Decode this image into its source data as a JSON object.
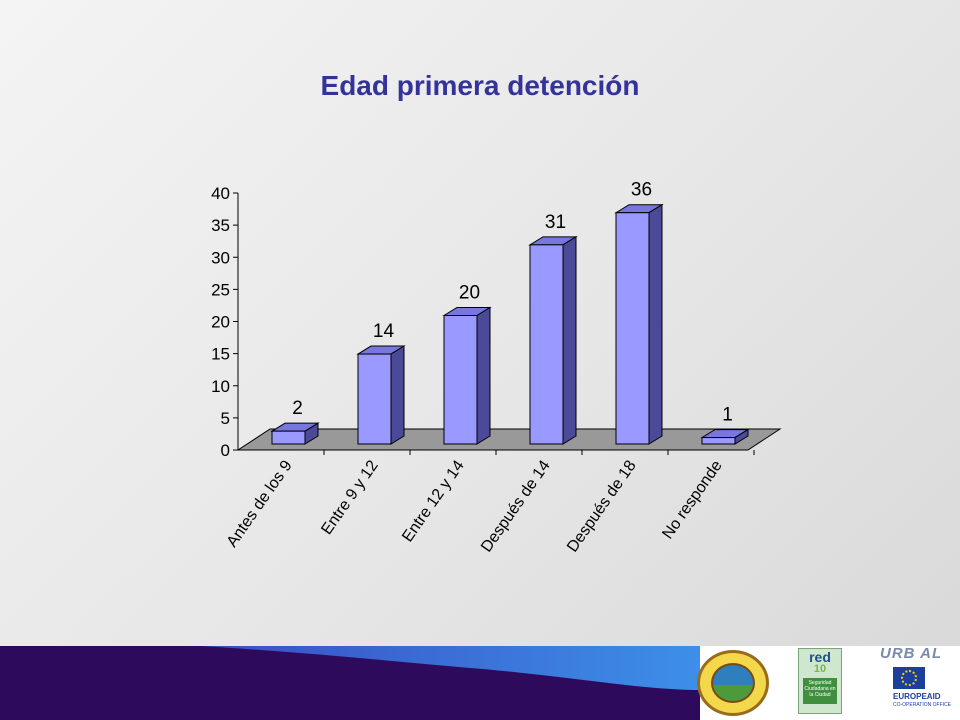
{
  "slide": {
    "title": "Edad primera detención"
  },
  "chart_data": {
    "type": "bar",
    "title": "",
    "xlabel": "",
    "ylabel": "",
    "categories": [
      "Antes de los 9",
      "Entre 9 y 12",
      "Entre 12 y 14",
      "Después de 14",
      "Después de 18",
      "No responde"
    ],
    "values": [
      2,
      14,
      20,
      31,
      36,
      1
    ],
    "ylim": [
      0,
      40
    ],
    "yticks": [
      0,
      5,
      10,
      15,
      20,
      25,
      30,
      35,
      40
    ],
    "grid": false,
    "legend": "none",
    "bar_color": "#9999ff",
    "bar_side_color": "#4a4a99",
    "bar_top_color": "#7777dd"
  },
  "logos": {
    "red_word": "red",
    "red_number": "10",
    "red_subtitle": "Seguridad Ciudadana en la Ciudad",
    "urbal": "URB AL",
    "europeaid": "EUROPEAID",
    "europeaid_sub": "CO-OPERATION OFFICE"
  },
  "colors": {
    "title": "#333399",
    "footer_dark": "#2e0a5c",
    "footer_light": "#3d7fe0"
  }
}
